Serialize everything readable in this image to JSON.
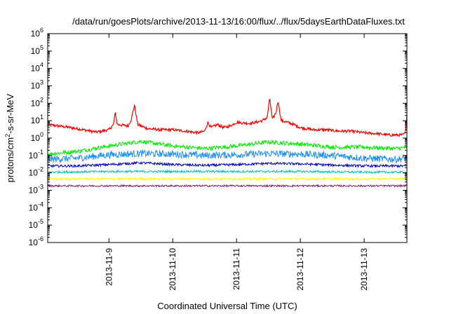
{
  "chart_data": {
    "type": "line",
    "title": "/data/run/goesPlots/archive/2013-11-13/16:00/flux/../flux/5daysEarthDataFluxes.txt",
    "xlabel": "Coordinated Universal Time (UTC)",
    "ylabel": {
      "base": "protons/cm",
      "exponent": "2",
      "rest": "-s-sr-MeV"
    },
    "y_scale": "log",
    "ylim": [
      1e-06,
      1000000.0
    ],
    "xlim": [
      "2013-11-08 01:00",
      "2013-11-13 16:00"
    ],
    "x_ticks": [
      "2013-11-9",
      "2013-11-10",
      "2013-11-11",
      "2013-11-12",
      "2013-11-13"
    ],
    "y_ticks": [
      {
        "base": "10",
        "exp": "-6",
        "value": -6
      },
      {
        "base": "10",
        "exp": "-5",
        "value": -5
      },
      {
        "base": "10",
        "exp": "-4",
        "value": -4
      },
      {
        "base": "10",
        "exp": "-3",
        "value": -3
      },
      {
        "base": "10",
        "exp": "-2",
        "value": -2
      },
      {
        "base": "10",
        "exp": "-1",
        "value": -1
      },
      {
        "base": "10",
        "exp": "0",
        "value": 0
      },
      {
        "base": "10",
        "exp": "1",
        "value": 1
      },
      {
        "base": "10",
        "exp": "2",
        "value": 2
      },
      {
        "base": "10",
        "exp": "3",
        "value": 3
      },
      {
        "base": "10",
        "exp": "4",
        "value": 4
      },
      {
        "base": "10",
        "exp": "5",
        "value": 5
      },
      {
        "base": "10",
        "exp": "6",
        "value": 6
      }
    ],
    "grid": false,
    "legend": "none",
    "x_unit": "days after 2013-11-08 00:00 UTC",
    "series": [
      {
        "color": "#ff0000",
        "noise": 0.08,
        "x": [
          1.04,
          1.2,
          1.4,
          1.6,
          1.8,
          2.0,
          2.07,
          2.1,
          2.13,
          2.3,
          2.35,
          2.4,
          2.45,
          2.6,
          2.8,
          3.0,
          3.2,
          3.4,
          3.5,
          3.55,
          3.6,
          3.7,
          3.8,
          3.9,
          4.0,
          4.2,
          4.3,
          4.4,
          4.48,
          4.52,
          4.56,
          4.62,
          4.65,
          4.7,
          4.8,
          4.9,
          5.0,
          5.2,
          5.4,
          5.6,
          5.8,
          6.0,
          6.2,
          6.4,
          6.6,
          6.65,
          6.67
        ],
        "y": [
          6,
          5,
          4,
          3,
          2.2,
          3,
          6,
          30,
          6,
          5,
          12,
          80,
          6,
          3.5,
          3,
          3,
          2.5,
          2,
          2.5,
          8,
          4,
          6,
          4,
          5,
          8,
          7,
          8,
          10,
          15,
          200,
          12,
          30,
          140,
          10,
          8,
          6,
          4,
          3,
          3,
          2.5,
          2.5,
          2,
          1.8,
          1.5,
          1.5,
          2,
          30
        ]
      },
      {
        "color": "#00ee00",
        "noise": 0.12,
        "x": [
          1.04,
          1.5,
          2.0,
          2.5,
          3.0,
          3.5,
          4.0,
          4.5,
          5.0,
          5.5,
          6.0,
          6.5,
          6.67
        ],
        "y": [
          0.12,
          0.17,
          0.35,
          0.65,
          0.35,
          0.25,
          0.35,
          0.6,
          0.45,
          0.3,
          0.3,
          0.25,
          0.3
        ]
      },
      {
        "color": "#1e90ff",
        "noise": 0.2,
        "x": [
          1.04,
          1.5,
          2.0,
          2.5,
          3.0,
          3.5,
          4.0,
          4.5,
          5.0,
          5.5,
          6.0,
          6.5,
          6.67
        ],
        "y": [
          0.06,
          0.07,
          0.11,
          0.13,
          0.12,
          0.1,
          0.11,
          0.13,
          0.12,
          0.1,
          0.07,
          0.06,
          0.07
        ]
      },
      {
        "color": "#0000cc",
        "noise": 0.07,
        "x": [
          1.04,
          1.5,
          2.0,
          2.5,
          3.0,
          3.5,
          4.0,
          4.5,
          5.0,
          5.5,
          6.0,
          6.5,
          6.67
        ],
        "y": [
          0.025,
          0.025,
          0.03,
          0.038,
          0.03,
          0.027,
          0.03,
          0.035,
          0.033,
          0.028,
          0.025,
          0.025,
          0.025
        ]
      },
      {
        "color": "#00c8b4",
        "noise": 0.06,
        "x": [
          1.04,
          2.0,
          3.0,
          4.0,
          5.0,
          6.0,
          6.67
        ],
        "y": [
          0.011,
          0.012,
          0.012,
          0.012,
          0.012,
          0.011,
          0.011
        ]
      },
      {
        "color": "#ffff00",
        "noise": 0.06,
        "x": [
          1.04,
          2.0,
          3.0,
          4.0,
          5.0,
          6.0,
          6.67
        ],
        "y": [
          0.0045,
          0.0045,
          0.0045,
          0.0045,
          0.0045,
          0.0045,
          0.0045
        ]
      },
      {
        "color": "#8b1f6b",
        "noise": 0.05,
        "x": [
          1.04,
          2.0,
          3.0,
          4.0,
          5.0,
          6.0,
          6.67
        ],
        "y": [
          0.0018,
          0.0018,
          0.0018,
          0.0018,
          0.0018,
          0.0018,
          0.0018
        ]
      }
    ]
  }
}
